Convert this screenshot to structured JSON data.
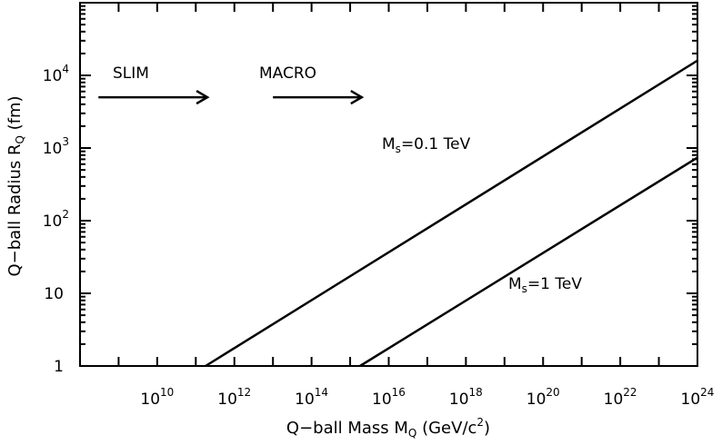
{
  "chart_data": {
    "type": "line",
    "xscale": "log",
    "yscale": "log",
    "xlim": [
      100000000.0,
      1e+24
    ],
    "ylim": [
      1,
      100000.0
    ],
    "grid": false,
    "x_ticks": [
      {
        "value": 10000000000.0,
        "base": "10",
        "exp": "10"
      },
      {
        "value": 1000000000000.0,
        "base": "10",
        "exp": "12"
      },
      {
        "value": 100000000000000.0,
        "base": "10",
        "exp": "14"
      },
      {
        "value": 1e+16,
        "base": "10",
        "exp": "16"
      },
      {
        "value": 1e+18,
        "base": "10",
        "exp": "18"
      },
      {
        "value": 1e+20,
        "base": "10",
        "exp": "20"
      },
      {
        "value": 1e+22,
        "base": "10",
        "exp": "22"
      },
      {
        "value": 1e+24,
        "base": "10",
        "exp": "24"
      }
    ],
    "y_ticks": [
      {
        "value": 1,
        "base": "1",
        "exp": ""
      },
      {
        "value": 10,
        "base": "10",
        "exp": ""
      },
      {
        "value": 100,
        "base": "10",
        "exp": "2"
      },
      {
        "value": 1000,
        "base": "10",
        "exp": "3"
      },
      {
        "value": 10000,
        "base": "10",
        "exp": "4"
      }
    ],
    "xlabel": {
      "text": "Q−ball Mass M",
      "sub": "Q",
      "unit_pre": " (GeV/c",
      "unit_sup": "2",
      "unit_post": ")"
    },
    "ylabel": {
      "text": "Q−ball Radius R",
      "sub": "Q",
      "unit": " (fm)"
    },
    "series": [
      {
        "label_main": "M",
        "label_sub": "s",
        "label_rest": "=0.1 TeV",
        "x": [
          180000000000.0,
          1e+24
        ],
        "y": [
          1,
          16000
        ]
      },
      {
        "label_main": "M",
        "label_sub": "s",
        "label_rest": "=1 TeV",
        "x": [
          1800000000000000.0,
          1e+24
        ],
        "y": [
          1,
          740
        ]
      }
    ],
    "annotations": [
      {
        "text": "SLIM",
        "arrow_x": [
          300000000.0,
          200000000000.0
        ],
        "arrow_y": 5000
      },
      {
        "text": "MACRO",
        "arrow_x": [
          10000000000000.0,
          2000000000000000.0
        ],
        "arrow_y": 5000
      }
    ]
  }
}
